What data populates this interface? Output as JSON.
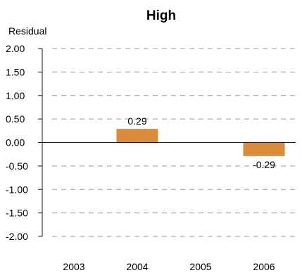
{
  "chart_data": {
    "type": "bar",
    "title": "High",
    "ylabel": "Residual",
    "xlabel": "",
    "categories": [
      "2003",
      "2004",
      "2005",
      "2006"
    ],
    "values": [
      0,
      0.29,
      0,
      -0.29
    ],
    "data_labels": [
      "",
      "0.29",
      "",
      "-0.29"
    ],
    "ylim": [
      -2,
      2
    ],
    "yticks": [
      2,
      1.5,
      1,
      0.5,
      0,
      -0.5,
      -1,
      -1.5,
      -2
    ],
    "ytick_labels": [
      "2.00",
      "1.50",
      "1.00",
      "0.50",
      "0.00",
      "-0.50",
      "-1.00",
      "-1.50",
      "-2.00"
    ],
    "grid": true,
    "bar_color": "#d98b3a",
    "grid_color": "#9a9a9a",
    "axis_color": "#1a1a1a"
  }
}
